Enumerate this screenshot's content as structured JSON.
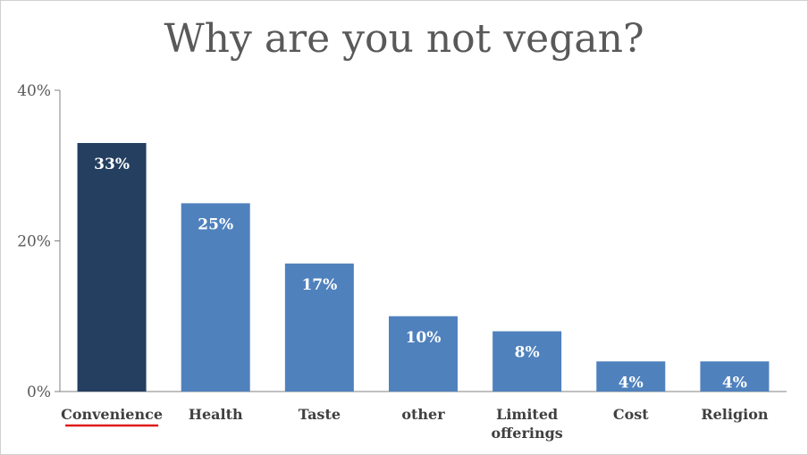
{
  "chart_data": {
    "type": "bar",
    "title": "Why are you not vegan?",
    "categories": [
      "Convenience",
      "Health",
      "Taste",
      "other",
      "Limited offerings",
      "Cost",
      "Religion"
    ],
    "category_lines": [
      [
        "Convenience"
      ],
      [
        "Health"
      ],
      [
        "Taste"
      ],
      [
        "other"
      ],
      [
        "Limited",
        "offerings"
      ],
      [
        "Cost"
      ],
      [
        "Religion"
      ]
    ],
    "values": [
      33,
      25,
      17,
      10,
      8,
      4,
      4
    ],
    "data_labels": [
      "33%",
      "25%",
      "17%",
      "10%",
      "8%",
      "4%",
      "4%"
    ],
    "y_ticks": [
      0,
      20,
      40
    ],
    "y_tick_labels": [
      "0%",
      "20%",
      "40%"
    ],
    "ylim": [
      0,
      40
    ],
    "xlabel": "",
    "ylabel": "",
    "highlight_index": 0,
    "underline_index": 0,
    "grid": false,
    "legend": "none",
    "colors": {
      "bar": "#4f81bd",
      "highlight": "#243f60",
      "axis": "#808080",
      "underline": "#e01b1b"
    }
  }
}
